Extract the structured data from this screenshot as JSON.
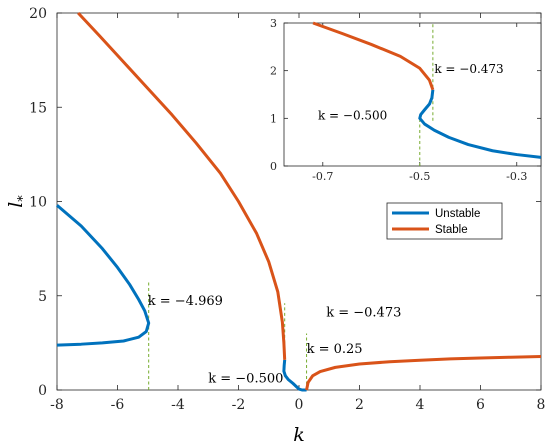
{
  "chart_data": {
    "type": "line",
    "main": {
      "xlabel": "k",
      "ylabel": "l*",
      "xlim": [
        -8,
        8
      ],
      "ylim": [
        0,
        20
      ],
      "xticks": [
        "-8",
        "-6",
        "-4",
        "-2",
        "0",
        "2",
        "4",
        "6",
        "8"
      ],
      "yticks": [
        "0",
        "5",
        "10",
        "15",
        "20"
      ],
      "grid": false,
      "legend_position": "right-middle"
    },
    "inset": {
      "xlim": [
        -0.78,
        -0.25
      ],
      "ylim": [
        0,
        3
      ],
      "xticks": [
        "-0.7",
        "-0.5",
        "-0.3"
      ],
      "yticks": [
        "0",
        "1",
        "2",
        "3"
      ],
      "position": "top-right"
    },
    "series": [
      {
        "name": "Unstable",
        "color": "#0072BD",
        "branches": [
          [
            [
              -8,
              9.8
            ],
            [
              -7.2,
              8.7
            ],
            [
              -6.5,
              7.5
            ],
            [
              -6.0,
              6.5
            ],
            [
              -5.6,
              5.6
            ],
            [
              -5.3,
              4.8
            ],
            [
              -5.1,
              4.2
            ],
            [
              -4.969,
              3.55
            ],
            [
              -5.05,
              3.1
            ],
            [
              -5.3,
              2.8
            ],
            [
              -5.8,
              2.6
            ],
            [
              -6.5,
              2.5
            ],
            [
              -7.2,
              2.43
            ],
            [
              -8,
              2.38
            ]
          ],
          [
            [
              -0.473,
              1.6
            ],
            [
              -0.49,
              1.3
            ],
            [
              -0.5,
              1.0
            ],
            [
              -0.45,
              0.75
            ],
            [
              -0.35,
              0.55
            ],
            [
              -0.2,
              0.35
            ],
            [
              -0.1,
              0.2
            ],
            [
              0,
              0.05
            ],
            [
              0.1,
              0.0
            ],
            [
              0.25,
              0.0
            ]
          ]
        ]
      },
      {
        "name": "Stable",
        "color": "#D95319",
        "branches": [
          [
            [
              -7.3,
              20
            ],
            [
              -6.6,
              18.8
            ],
            [
              -5.8,
              17.4
            ],
            [
              -5.0,
              16.0
            ],
            [
              -4.2,
              14.6
            ],
            [
              -3.4,
              13.1
            ],
            [
              -2.6,
              11.5
            ],
            [
              -2.0,
              10.0
            ],
            [
              -1.4,
              8.3
            ],
            [
              -1.0,
              6.8
            ],
            [
              -0.7,
              5.2
            ],
            [
              -0.55,
              3.6
            ],
            [
              -0.5,
              2.5
            ],
            [
              -0.473,
              1.6
            ]
          ],
          [
            [
              0.25,
              0.0
            ],
            [
              0.3,
              0.4
            ],
            [
              0.45,
              0.75
            ],
            [
              0.7,
              0.98
            ],
            [
              1.2,
              1.2
            ],
            [
              2,
              1.38
            ],
            [
              3,
              1.5
            ],
            [
              4,
              1.58
            ],
            [
              5,
              1.65
            ],
            [
              6,
              1.7
            ],
            [
              7,
              1.74
            ],
            [
              8,
              1.78
            ]
          ]
        ]
      }
    ],
    "inset_series": [
      {
        "name": "Unstable",
        "color": "#0072BD",
        "points": [
          [
            -0.25,
            0.18
          ],
          [
            -0.3,
            0.24
          ],
          [
            -0.35,
            0.32
          ],
          [
            -0.4,
            0.45
          ],
          [
            -0.44,
            0.6
          ],
          [
            -0.47,
            0.75
          ],
          [
            -0.49,
            0.88
          ],
          [
            -0.5,
            1.0
          ],
          [
            -0.498,
            1.08
          ],
          [
            -0.49,
            1.18
          ],
          [
            -0.48,
            1.3
          ],
          [
            -0.475,
            1.43
          ],
          [
            -0.473,
            1.6
          ]
        ]
      },
      {
        "name": "Stable",
        "color": "#D95319",
        "points": [
          [
            -0.473,
            1.6
          ],
          [
            -0.48,
            1.8
          ],
          [
            -0.5,
            2.05
          ],
          [
            -0.54,
            2.3
          ],
          [
            -0.6,
            2.55
          ],
          [
            -0.66,
            2.78
          ],
          [
            -0.72,
            3.0
          ]
        ]
      }
    ],
    "vlines": [
      {
        "x": -4.969,
        "y0": 0,
        "y1": 5.8
      },
      {
        "x": -0.473,
        "y0": 1.6,
        "y1": 4.6
      },
      {
        "x": 0.25,
        "y0": 0.0,
        "y1": 3.0
      }
    ],
    "inset_vlines": [
      {
        "x": -0.5,
        "y0": 0,
        "y1": 1.0
      },
      {
        "x": -0.473,
        "y0": 0.95,
        "y1": 3.0
      }
    ],
    "annotations": [
      {
        "text": "k = −4.969",
        "x": -5.0,
        "y": 4.5
      },
      {
        "text": "k = −0.473",
        "x": 0.9,
        "y": 3.9
      },
      {
        "text": "k = 0.25",
        "x": 0.25,
        "y": 1.95
      },
      {
        "text": "k = −0.500",
        "x": -3.0,
        "y": 0.4
      }
    ],
    "inset_annotations": [
      {
        "text": "k = −0.473",
        "x": -0.47,
        "y": 1.95
      },
      {
        "text": "k = −0.500",
        "x": -0.71,
        "y": 0.98
      }
    ],
    "legend": [
      {
        "label": "Unstable",
        "color": "#0072BD"
      },
      {
        "label": "Stable",
        "color": "#D95319"
      }
    ]
  }
}
